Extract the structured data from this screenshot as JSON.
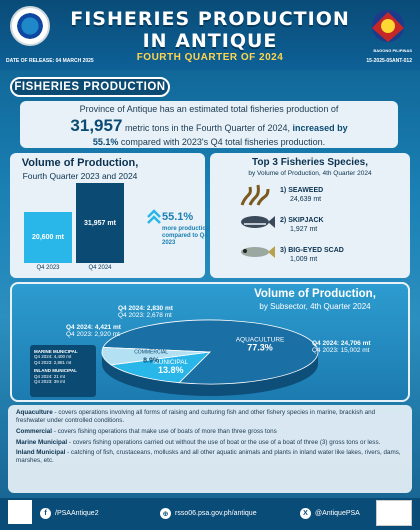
{
  "header": {
    "title_line1": "FISHERIES PRODUCTION",
    "title_line2": "IN ANTIQUE",
    "subtitle": "FOURTH QUARTER OF 2024",
    "release_date": "DATE OF RELEASE: 04 MARCH 2025",
    "reference_no": "15-2025-05ANT-012",
    "bp_text": "BAGONG PILIPINAS"
  },
  "section_banner": "FISHERIES PRODUCTION",
  "summary": {
    "line1": "Province of Antique has an estimated total fisheries production of",
    "big_number": "31,957",
    "line2": "metric tons in the Fourth Quarter of 2024,",
    "increase": "increased by",
    "pct": "55.1%",
    "line3": "compared with 2023's Q4 total fisheries production."
  },
  "volume": {
    "title": "Volume of Production,",
    "subtitle": "Fourth Quarter 2023 and 2024",
    "pct_change": "55.1%",
    "pct_note": "more production compared to Q4 2023"
  },
  "chart_data": [
    {
      "type": "bar",
      "title": "Volume of Production, Fourth Quarter 2023 and 2024",
      "categories": [
        "Q4 2023",
        "Q4 2024"
      ],
      "values": [
        20600,
        31957
      ],
      "value_labels": [
        "20,600 mt",
        "31,957 mt"
      ],
      "colors": [
        "#29b6e8",
        "#0b4a72"
      ]
    },
    {
      "type": "pie",
      "title": "Volume of Production, by Subsector, 4th Quarter 2024",
      "slices": [
        {
          "label": "AQUACULTURE",
          "pct": 77.3,
          "q4_2024": "Q4 2024: 24,706 mt",
          "q4_2023": "Q4 2023: 15,002 mt",
          "color": "#1a6fa5"
        },
        {
          "label": "MUNICIPAL",
          "pct": 13.8,
          "q4_2024": "Q4 2024: 4,421 mt",
          "q4_2023": "Q4 2023: 2,920 mt",
          "color": "#29b6e8"
        },
        {
          "label": "COMMERCIAL",
          "pct": 8.9,
          "q4_2024": "Q4 2024: 2,830 mt",
          "q4_2023": "Q4 2023: 2,678 mt",
          "color": "#b3e0f2"
        }
      ]
    }
  ],
  "species": {
    "title": "Top 3 Fisheries Species,",
    "subtitle": "by Volume of Production, 4th Quarter 2024",
    "items": [
      {
        "rank": "1)",
        "name": "SEAWEED",
        "value": "24,639 mt"
      },
      {
        "rank": "2)",
        "name": "SKIPJACK",
        "value": "1,927 mt"
      },
      {
        "rank": "3)",
        "name": "BIG-EYED SCAD",
        "value": "1,009 mt"
      }
    ]
  },
  "subsector": {
    "title": "Volume of Production,",
    "subtitle": "by Subsector, 4th Quarter 2024",
    "municipal_legend": {
      "marine_title": "MARINE MUNICIPAL",
      "marine_2024": "Q4 2024: 4,400 mt",
      "marine_2023": "Q4 2023: 2,881 mt",
      "inland_title": "INLAND MUNICIPAL",
      "inland_2024": "Q4 2024: 21 mt",
      "inland_2023": "Q4 2023: 39 mt"
    }
  },
  "definitions": [
    {
      "term": "Aquaculture",
      "text": " - covers operations involving all forms of raising and culturing fish and other fishery species in marine, brackish and freshwater under controlled conditions."
    },
    {
      "term": "Commercial",
      "text": " - covers fishing operations that make use of boats of more than three gross tons"
    },
    {
      "term": "Marine Municipal",
      "text": " - covers fishing operations carried out without the use of boat or the use of a boat of three (3) gross tons or less."
    },
    {
      "term": "Inland Municipal",
      "text": " - catching of fish, crustaceans, mollusks and all other aquatic animals and plants in inland water like lakes, rivers, dams, marshes, etc."
    }
  ],
  "footer": {
    "facebook": "/PSAAntique2",
    "website": "rsso06.psa.gov.ph/antique",
    "x_handle": "@AntiquePSA"
  }
}
